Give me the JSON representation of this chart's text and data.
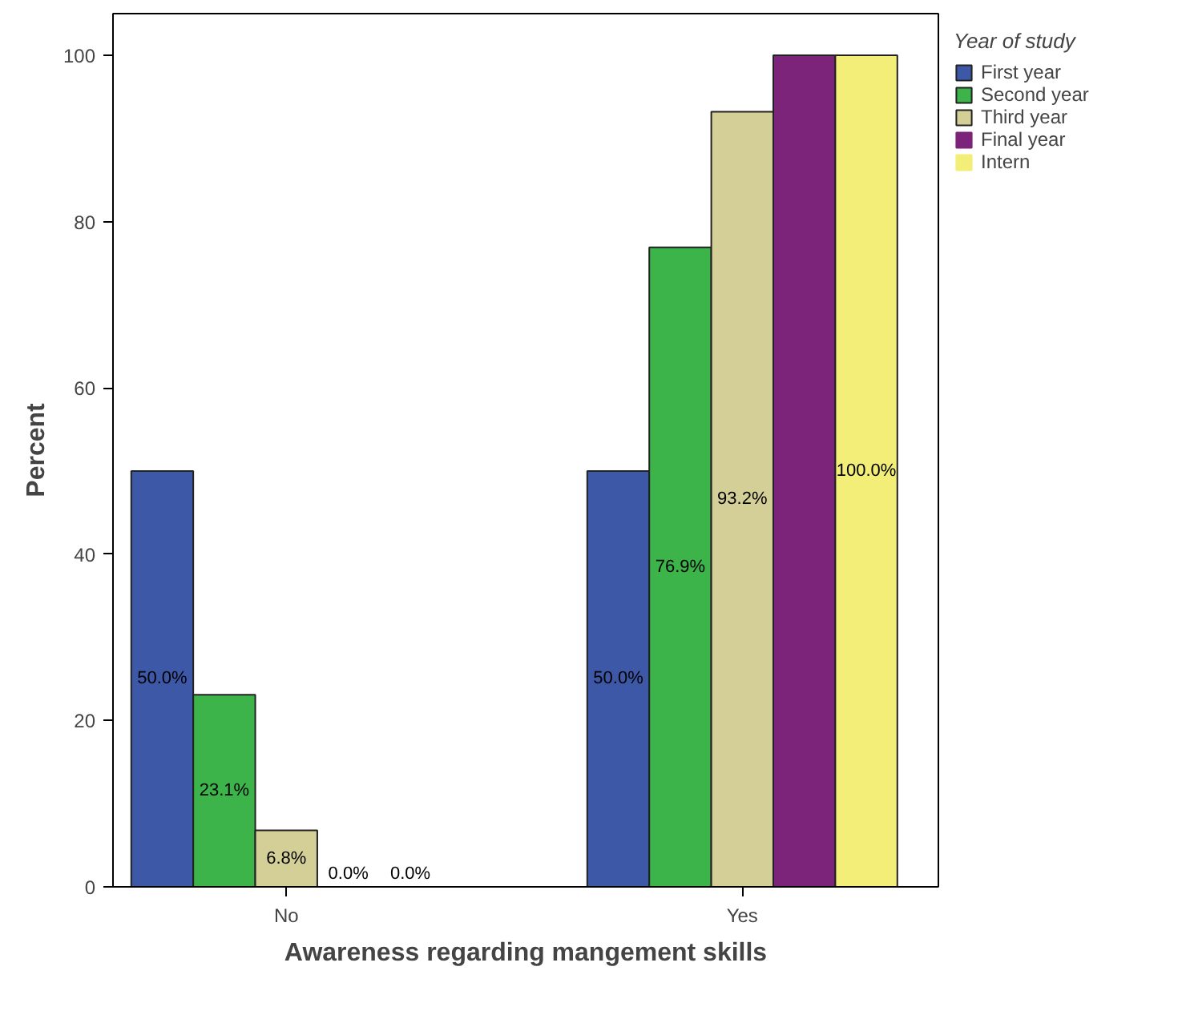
{
  "chart_data": {
    "type": "bar",
    "xlabel": "Awareness regarding mangement skills",
    "ylabel": "Percent",
    "legend_title": "Year of study",
    "categories": [
      "No",
      "Yes"
    ],
    "series": [
      {
        "name": "First year",
        "color": "#3e58a8",
        "values": [
          50.0,
          50.0
        ],
        "value_labels": [
          "50.0%",
          "50.0%"
        ]
      },
      {
        "name": "Second year",
        "color": "#3cb44a",
        "values": [
          23.1,
          76.9
        ],
        "value_labels": [
          "23.1%",
          "76.9%"
        ]
      },
      {
        "name": "Third year",
        "color": "#d4cf97",
        "values": [
          6.8,
          93.2
        ],
        "value_labels": [
          "6.8%",
          "93.2%"
        ]
      },
      {
        "name": "Final year",
        "color": "#7b2479",
        "values": [
          0.0,
          100.0
        ],
        "value_labels": [
          "0.0%",
          null
        ]
      },
      {
        "name": "Intern",
        "color": "#f3ee78",
        "values": [
          0.0,
          100.0
        ],
        "value_labels": [
          "0.0%",
          "100.0%"
        ]
      }
    ],
    "ylim": [
      0,
      105
    ],
    "yticks": [
      0,
      20,
      40,
      60,
      80,
      100
    ],
    "grid": false,
    "legend": "right"
  }
}
